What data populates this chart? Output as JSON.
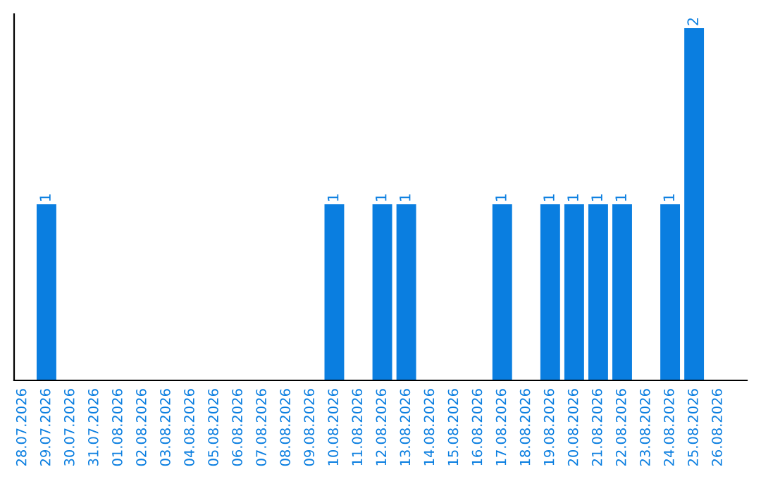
{
  "chart_data": {
    "type": "bar",
    "categories": [
      "28.07.2026",
      "29.07.2026",
      "30.07.2026",
      "31.07.2026",
      "01.08.2026",
      "02.08.2026",
      "03.08.2026",
      "04.08.2026",
      "05.08.2026",
      "06.08.2026",
      "07.08.2026",
      "08.08.2026",
      "09.08.2026",
      "10.08.2026",
      "11.08.2026",
      "12.08.2026",
      "13.08.2026",
      "14.08.2026",
      "15.08.2026",
      "16.08.2026",
      "17.08.2026",
      "18.08.2026",
      "19.08.2026",
      "20.08.2026",
      "21.08.2026",
      "22.08.2026",
      "23.08.2026",
      "24.08.2026",
      "25.08.2026",
      "26.08.2026"
    ],
    "values": [
      0,
      1,
      0,
      0,
      0,
      0,
      0,
      0,
      0,
      0,
      0,
      0,
      0,
      1,
      0,
      1,
      1,
      0,
      0,
      0,
      1,
      0,
      1,
      1,
      1,
      1,
      0,
      1,
      2,
      0
    ],
    "value_labels": [
      null,
      "1",
      null,
      null,
      null,
      null,
      null,
      null,
      null,
      null,
      null,
      null,
      null,
      "1",
      null,
      "1",
      "1",
      null,
      null,
      null,
      "1",
      null,
      "1",
      "1",
      "1",
      "1",
      null,
      "1",
      "2",
      null
    ],
    "color": "#0a7ee0",
    "ylim": [
      0,
      2.08
    ],
    "tick_labels": "x",
    "grid": false
  }
}
